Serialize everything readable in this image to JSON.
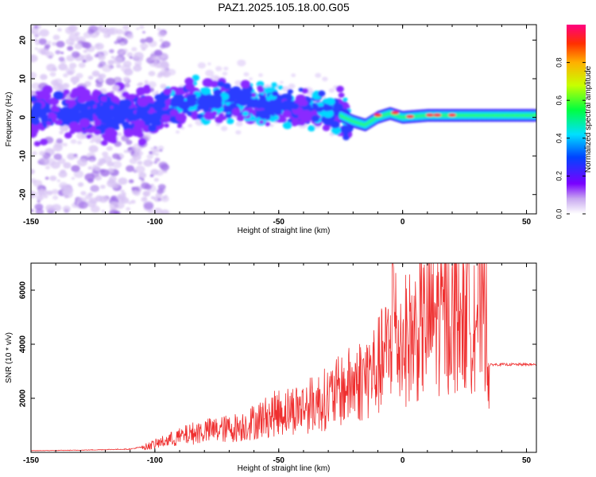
{
  "title": "PAZ1.2025.105.18.00.G05",
  "chart_data": [
    {
      "type": "heatmap",
      "xlabel": "Height of straight line (km)",
      "ylabel": "Frequency (Hz)",
      "xlim": [
        -150,
        54
      ],
      "ylim": [
        -25,
        24
      ],
      "xticks": [
        -150,
        -100,
        -50,
        0,
        50
      ],
      "yticks": [
        -20,
        -10,
        0,
        10,
        20
      ],
      "colorbar": {
        "label": "Normalized spectral amplitude",
        "range": [
          0,
          1
        ],
        "ticks": [
          "0.0",
          "0.2",
          "0.4",
          "0.6",
          "0.8"
        ],
        "colormap": "rainbow (white-violet-blue-cyan-green-yellow-red)"
      },
      "ridge": [
        {
          "x": -150,
          "y": 1
        },
        {
          "x": -100,
          "y": 1
        },
        {
          "x": -80,
          "y": 5
        },
        {
          "x": -50,
          "y": 3
        },
        {
          "x": -30,
          "y": 2
        },
        {
          "x": -20,
          "y": -1
        },
        {
          "x": -15,
          "y": -2
        },
        {
          "x": -10,
          "y": 0
        },
        {
          "x": -5,
          "y": 1
        },
        {
          "x": 0,
          "y": 0
        },
        {
          "x": 10,
          "y": 0.5
        },
        {
          "x": 30,
          "y": 0.5
        },
        {
          "x": 54,
          "y": 0.5
        }
      ]
    },
    {
      "type": "line",
      "xlabel": "Height of straight line (km)",
      "ylabel": "SNR (10 * v/v)",
      "xlim": [
        -150,
        54
      ],
      "ylim": [
        0,
        7000
      ],
      "xticks": [
        -150,
        -100,
        -50,
        0,
        50
      ],
      "yticks": [
        2000,
        4000,
        6000
      ],
      "color": "#ef3030",
      "series": [
        {
          "name": "",
          "x": [
            -150,
            -140,
            -130,
            -120,
            -110,
            -105,
            -100,
            -95,
            -90,
            -85,
            -80,
            -75,
            -70,
            -65,
            -60,
            -55,
            -50,
            -45,
            -40,
            -35,
            -30,
            -25,
            -20,
            -15,
            -10,
            -5,
            -4,
            -2,
            0,
            5,
            10,
            15,
            20,
            25,
            30,
            34,
            35,
            36,
            40,
            45,
            50,
            54
          ],
          "y": [
            60,
            70,
            80,
            100,
            120,
            200,
            350,
            500,
            650,
            800,
            900,
            950,
            1000,
            1100,
            1300,
            1500,
            1700,
            1800,
            1900,
            2100,
            2300,
            2600,
            2900,
            3200,
            3600,
            4400,
            6200,
            4500,
            4700,
            5000,
            5500,
            5800,
            5950,
            6050,
            6150,
            6200,
            3200,
            3250,
            3250,
            3250,
            3250,
            3250
          ]
        }
      ]
    }
  ]
}
